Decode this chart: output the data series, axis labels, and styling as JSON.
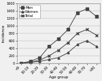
{
  "age_groups": [
    "<9",
    "10-19",
    "20-29",
    "30-39",
    "40-49",
    "50-59",
    "60-69",
    "70-79",
    ">80"
  ],
  "men": [
    0,
    50,
    150,
    450,
    650,
    900,
    1350,
    1450,
    1250
  ],
  "women": [
    0,
    20,
    50,
    100,
    150,
    280,
    500,
    600,
    450
  ],
  "total": [
    0,
    30,
    80,
    200,
    350,
    550,
    800,
    900,
    750
  ],
  "legend_labels": [
    "Men",
    "Women",
    "Total"
  ],
  "ylabel": "Incidence",
  "xlabel": "Age group",
  "ylim": [
    0,
    1600
  ],
  "yticks": [
    0,
    200,
    400,
    600,
    800,
    1000,
    1200,
    1400,
    1600
  ],
  "ytick_labels": [
    "0",
    "200",
    "400",
    "600",
    "800",
    "1000",
    "1200",
    "1400",
    "1600"
  ],
  "men_marker": "s",
  "women_marker": "^",
  "total_marker": "x",
  "line_color": "#444444",
  "bg_color": "#f0f0f0",
  "axis_fontsize": 4.0,
  "tick_fontsize": 3.5,
  "legend_fontsize": 3.8
}
